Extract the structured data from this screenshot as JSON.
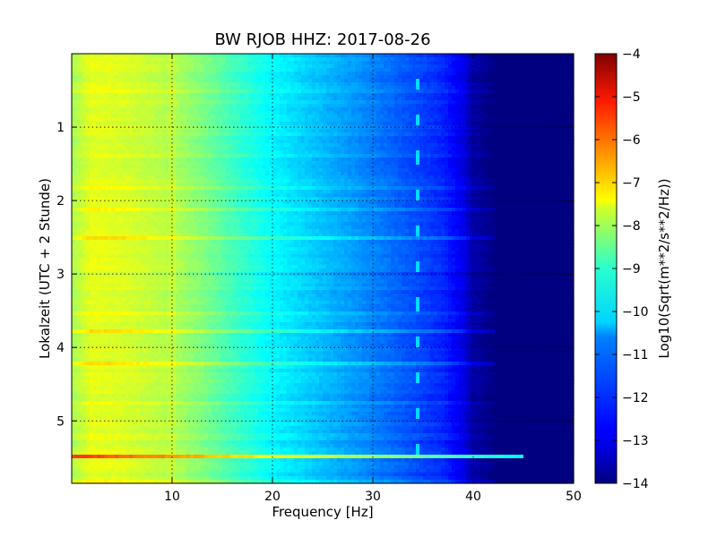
{
  "chart_data": {
    "type": "heatmap",
    "title": "BW RJOB HHZ: 2017-08-26",
    "xlabel": "Frequency [Hz]",
    "ylabel": "Lokalzeit (UTC + 2 Stunde)",
    "xlim": [
      0,
      50
    ],
    "ylim": [
      5.85,
      0
    ],
    "y_inverted": true,
    "x_ticks": [
      10,
      20,
      30,
      40,
      50
    ],
    "y_ticks": [
      1,
      2,
      3,
      4,
      5
    ],
    "grid": true,
    "colormap": "jet",
    "colorbar": {
      "label": "Log10(Sqrt(m**2/s**2/Hz))",
      "range": [
        -14,
        -4
      ],
      "ticks": [
        -4,
        -5,
        -6,
        -7,
        -8,
        -9,
        -10,
        -11,
        -12,
        -13,
        -14
      ]
    },
    "spectral_profile": {
      "frequency_hz": [
        0,
        2,
        5,
        10,
        13,
        16,
        20,
        25,
        30,
        34,
        37,
        39,
        40,
        42,
        50
      ],
      "log10_amplitude": [
        -8.6,
        -8.0,
        -8.1,
        -8.5,
        -9.0,
        -9.6,
        -10.3,
        -10.9,
        -11.5,
        -12.0,
        -12.4,
        -13.0,
        -13.6,
        -14.0,
        -14.0
      ]
    },
    "events": [
      {
        "time_h": 5.48,
        "freq_range_hz": [
          0,
          50
        ],
        "level": "strong broadband",
        "peak_log10": -5.6
      }
    ],
    "tonal_line": {
      "freq_hz": 34.5,
      "repeat_interval_h": 0.5,
      "start_h": 0.33
    }
  }
}
